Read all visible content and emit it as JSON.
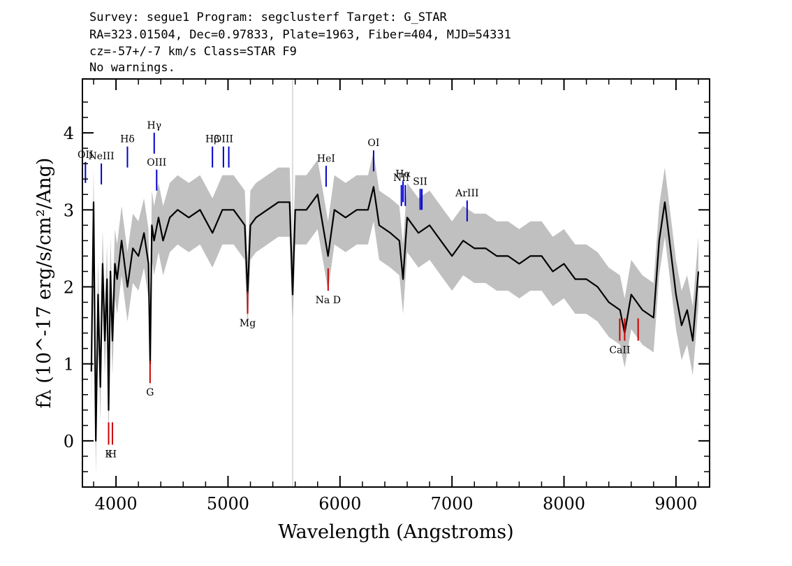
{
  "header": {
    "line1": "Survey: segue1 Program: segclusterf Target: G_STAR",
    "line2": "RA=323.01504, Dec=0.97833, Plate=1963, Fiber=404, MJD=54331",
    "line3": "cz=-57+/-7 km/s Class=STAR F9",
    "line4": "No warnings."
  },
  "chart_data": {
    "type": "line",
    "xlabel": "Wavelength (Angstroms)",
    "ylabel": "fλ (10^-17 erg/s/cm²/Ang)",
    "xlim": [
      3700,
      9300
    ],
    "ylim": [
      -0.6,
      4.7
    ],
    "x_ticks": [
      4000,
      5000,
      6000,
      7000,
      8000,
      9000
    ],
    "y_ticks": [
      0,
      1,
      2,
      3,
      4
    ],
    "grid": false,
    "colors": {
      "flux": "#000000",
      "error_band": "#c0c0c0",
      "emission": "#0000cc",
      "absorption": "#cc0000",
      "sky": "#bbbbbb"
    },
    "series": [
      {
        "name": "flux",
        "x": [
          3780,
          3800,
          3820,
          3840,
          3860,
          3880,
          3900,
          3920,
          3934,
          3950,
          3968,
          3990,
          4010,
          4050,
          4102,
          4150,
          4200,
          4250,
          4290,
          4305,
          4320,
          4340,
          4380,
          4420,
          4480,
          4550,
          4650,
          4750,
          4861,
          4950,
          5050,
          5100,
          5150,
          5175,
          5200,
          5250,
          5350,
          5450,
          5550,
          5577,
          5600,
          5700,
          5800,
          5893,
          5950,
          6050,
          6150,
          6250,
          6300,
          6350,
          6450,
          6530,
          6563,
          6600,
          6700,
          6800,
          6900,
          7000,
          7100,
          7200,
          7300,
          7400,
          7500,
          7600,
          7700,
          7800,
          7900,
          8000,
          8100,
          8200,
          8300,
          8400,
          8500,
          8542,
          8600,
          8700,
          8800,
          8850,
          8900,
          8950,
          9000,
          9050,
          9100,
          9150,
          9200
        ],
        "values": [
          0.9,
          3.1,
          0.0,
          1.9,
          0.7,
          2.3,
          1.3,
          2.1,
          0.4,
          2.2,
          1.3,
          2.3,
          2.1,
          2.6,
          2.0,
          2.5,
          2.4,
          2.7,
          2.3,
          1.0,
          2.8,
          2.6,
          2.9,
          2.6,
          2.9,
          3.0,
          2.9,
          3.0,
          2.7,
          3.0,
          3.0,
          2.9,
          2.8,
          1.9,
          2.8,
          2.9,
          3.0,
          3.1,
          3.1,
          1.9,
          3.0,
          3.0,
          3.2,
          2.4,
          3.0,
          2.9,
          3.0,
          3.0,
          3.3,
          2.8,
          2.7,
          2.6,
          2.1,
          2.9,
          2.7,
          2.8,
          2.6,
          2.4,
          2.6,
          2.5,
          2.5,
          2.4,
          2.4,
          2.3,
          2.4,
          2.4,
          2.2,
          2.3,
          2.1,
          2.1,
          2.0,
          1.8,
          1.7,
          1.4,
          1.9,
          1.7,
          1.6,
          2.6,
          3.1,
          2.5,
          1.9,
          1.5,
          1.7,
          1.3,
          2.2
        ]
      }
    ],
    "emission_lines": [
      {
        "label": "OII",
        "wavelength": 3727,
        "flux_level": 3.35
      },
      {
        "label": "NeIII",
        "wavelength": 3869,
        "flux_level": 3.33
      },
      {
        "label": "Hδ",
        "wavelength": 4102,
        "flux_level": 3.55
      },
      {
        "label": "Hγ",
        "wavelength": 4341,
        "flux_level": 3.73
      },
      {
        "label": "OIII",
        "wavelength": 4363,
        "flux_level": 3.25
      },
      {
        "label": "Hβ",
        "wavelength": 4861,
        "flux_level": 3.55
      },
      {
        "label": "OIII",
        "wavelength": 4959,
        "flux_level": 3.55
      },
      {
        "label": "OIII",
        "wavelength": 5007,
        "flux_level": 3.55
      },
      {
        "label": "HeI",
        "wavelength": 5876,
        "flux_level": 3.3
      },
      {
        "label": "OI",
        "wavelength": 6300,
        "flux_level": 3.5
      },
      {
        "label": "NII",
        "wavelength": 6548,
        "flux_level": 3.05
      },
      {
        "label": "Hα",
        "wavelength": 6563,
        "flux_level": 3.1
      },
      {
        "label": "NII",
        "wavelength": 6583,
        "flux_level": 3.05
      },
      {
        "label": "SII",
        "wavelength": 6716,
        "flux_level": 3.0
      },
      {
        "label": "SII",
        "wavelength": 6731,
        "flux_level": 3.0
      },
      {
        "label": "ArIII",
        "wavelength": 7135,
        "flux_level": 2.85
      }
    ],
    "absorption_lines": [
      {
        "label": "K",
        "wavelength": 3934,
        "flux_level": -0.05
      },
      {
        "label": "H",
        "wavelength": 3968,
        "flux_level": -0.05
      },
      {
        "label": "G",
        "wavelength": 4304,
        "flux_level": 0.75
      },
      {
        "label": "Mg",
        "wavelength": 5175,
        "flux_level": 1.65
      },
      {
        "label": "Na D",
        "wavelength": 5894,
        "flux_level": 1.95
      },
      {
        "label": "CaII",
        "wavelength": 8498,
        "flux_level": 1.3
      },
      {
        "label": "CaII",
        "wavelength": 8542,
        "flux_level": 1.3
      },
      {
        "label": "CaII",
        "wavelength": 8662,
        "flux_level": 1.3
      }
    ],
    "sky_line": {
      "wavelength": 5577
    }
  }
}
